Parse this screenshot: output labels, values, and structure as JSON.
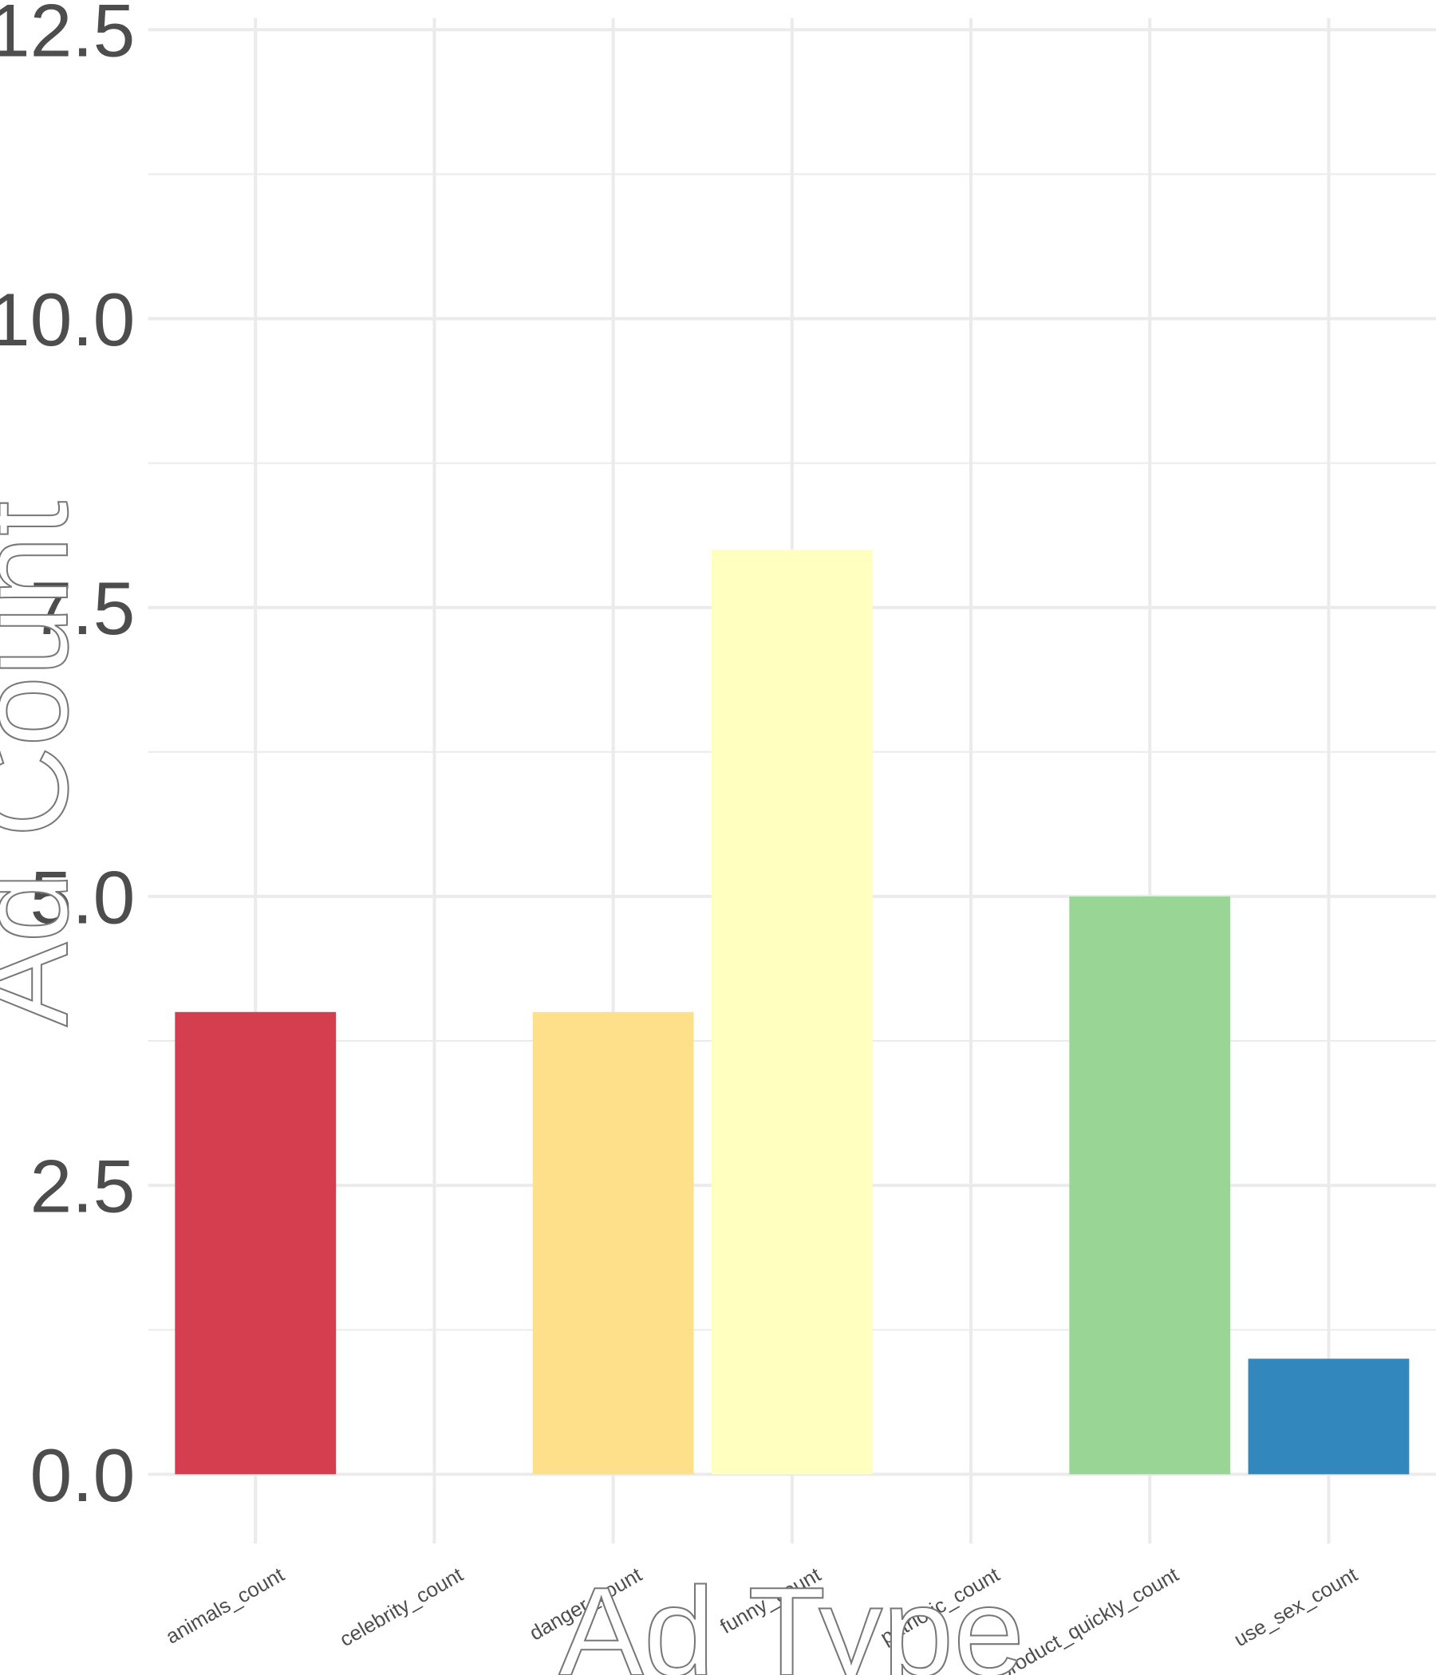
{
  "chart_data": {
    "type": "bar",
    "x_label": "Ad Type",
    "y_label": "Ad Count",
    "categories": [
      "animals_count",
      "celebrity_count",
      "danger_count",
      "funny_count",
      "patriotic_count",
      "show_product_quickly_count",
      "use_sex_count"
    ],
    "values": [
      4,
      0,
      4,
      8,
      0,
      5,
      1
    ],
    "colors": [
      "#D53E4F",
      "#FC8D59",
      "#FEE08B",
      "#FFFFBF",
      "#E6F598",
      "#99D594",
      "#3288BD"
    ],
    "ylim": [
      -0.6,
      12.6
    ],
    "yticks": [
      {
        "value": 0,
        "label": "0.0"
      },
      {
        "value": 2.5,
        "label": "2.5"
      },
      {
        "value": 5,
        "label": "5.0"
      },
      {
        "value": 7.5,
        "label": "7.5"
      },
      {
        "value": 10,
        "label": "10.0"
      },
      {
        "value": 12.5,
        "label": "12.5"
      }
    ],
    "grid": true
  }
}
